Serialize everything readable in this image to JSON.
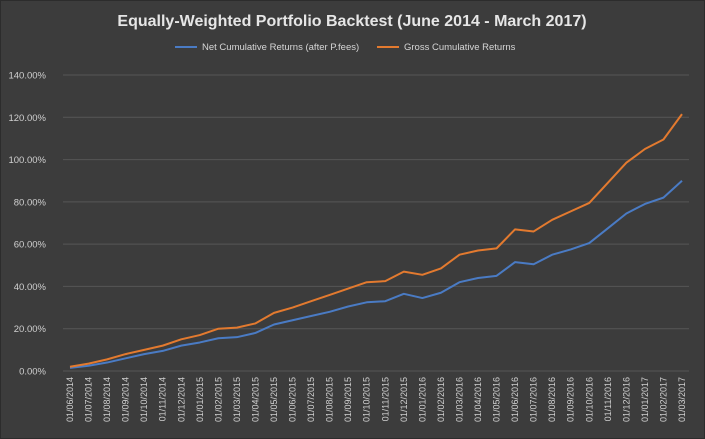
{
  "chart_data": {
    "type": "line",
    "title": "Equally-Weighted Portfolio Backtest (June 2014 - March 2017)",
    "xlabel": "",
    "ylabel": "",
    "ylim": [
      0,
      140
    ],
    "y_ticks": [
      "0.00%",
      "20.00%",
      "40.00%",
      "60.00%",
      "80.00%",
      "100.00%",
      "120.00%",
      "140.00%"
    ],
    "grid": true,
    "legend_position": "top",
    "categories": [
      "01/06/2014",
      "01/07/2014",
      "01/08/2014",
      "01/09/2014",
      "01/10/2014",
      "01/11/2014",
      "01/12/2014",
      "01/01/2015",
      "01/02/2015",
      "01/03/2015",
      "01/04/2015",
      "01/05/2015",
      "01/06/2015",
      "01/07/2015",
      "01/08/2015",
      "01/09/2015",
      "01/10/2015",
      "01/11/2015",
      "01/12/2015",
      "01/01/2016",
      "01/02/2016",
      "01/03/2016",
      "01/04/2016",
      "01/05/2016",
      "01/06/2016",
      "01/07/2016",
      "01/08/2016",
      "01/09/2016",
      "01/10/2016",
      "01/11/2016",
      "01/12/2016",
      "01/01/2017",
      "01/02/2017",
      "01/03/2017"
    ],
    "series": [
      {
        "name": "Net Cumulative Returns (after P.fees)",
        "color": "#4a7bc4",
        "values": [
          1.5,
          2.5,
          4,
          6,
          8,
          9.5,
          12,
          13.5,
          15.5,
          16,
          18,
          22,
          24,
          26,
          28,
          30.5,
          32.5,
          33,
          36.5,
          34.5,
          37,
          42,
          44,
          45,
          51.5,
          50.5,
          55,
          57.5,
          60.5,
          67.5,
          74.5,
          79,
          82,
          90
        ]
      },
      {
        "name": "Gross Cumulative Returns",
        "color": "#e37a2f",
        "values": [
          2,
          3.5,
          5.5,
          8,
          10,
          12,
          15,
          17,
          20,
          20.5,
          22.5,
          27.5,
          30,
          33,
          36,
          39,
          42,
          42.5,
          47,
          45.5,
          48.5,
          55,
          57,
          58,
          67,
          66,
          71.5,
          75.5,
          79.5,
          89,
          98.5,
          105,
          109.5,
          121.5
        ]
      }
    ]
  }
}
